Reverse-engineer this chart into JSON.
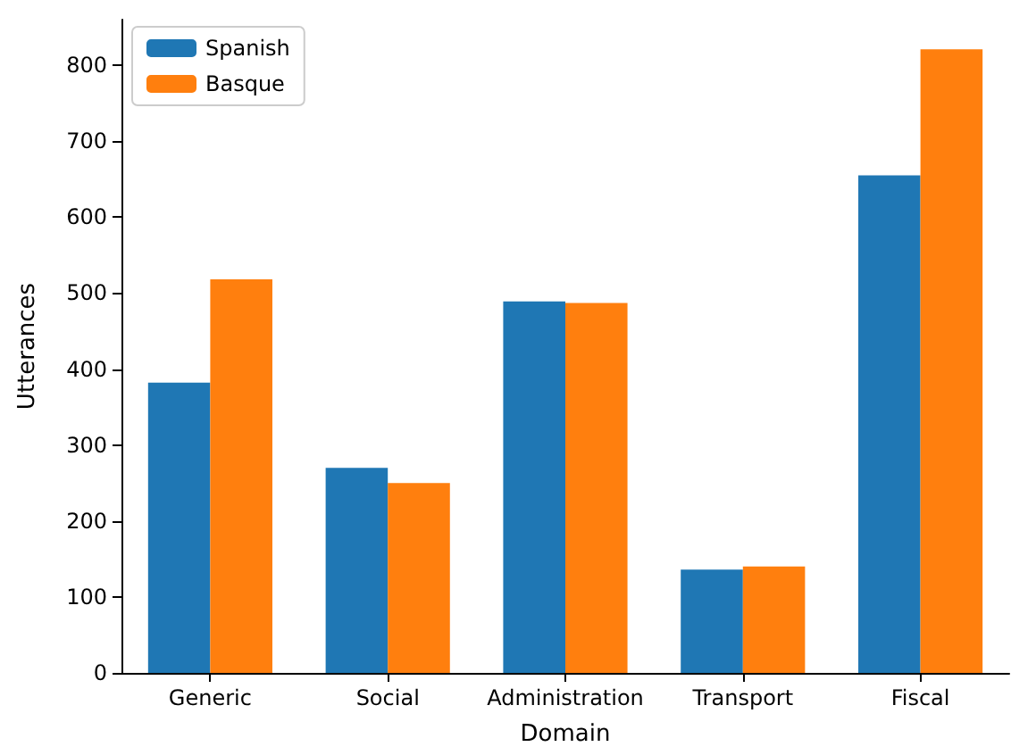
{
  "chart_data": {
    "type": "bar",
    "xlabel": "Domain",
    "ylabel": "Utterances",
    "categories": [
      "Generic",
      "Social",
      "Administration",
      "Transport",
      "Fiscal"
    ],
    "series": [
      {
        "name": "Spanish",
        "color": "#1f77b4",
        "values": [
          382,
          270,
          489,
          136,
          655
        ]
      },
      {
        "name": "Basque",
        "color": "#ff7f0e",
        "values": [
          518,
          250,
          487,
          140,
          821
        ]
      }
    ],
    "ylim": [
      0,
      860
    ],
    "yticks": [
      0,
      100,
      200,
      300,
      400,
      500,
      600,
      700,
      800
    ],
    "grid": false,
    "legend": "top left"
  }
}
